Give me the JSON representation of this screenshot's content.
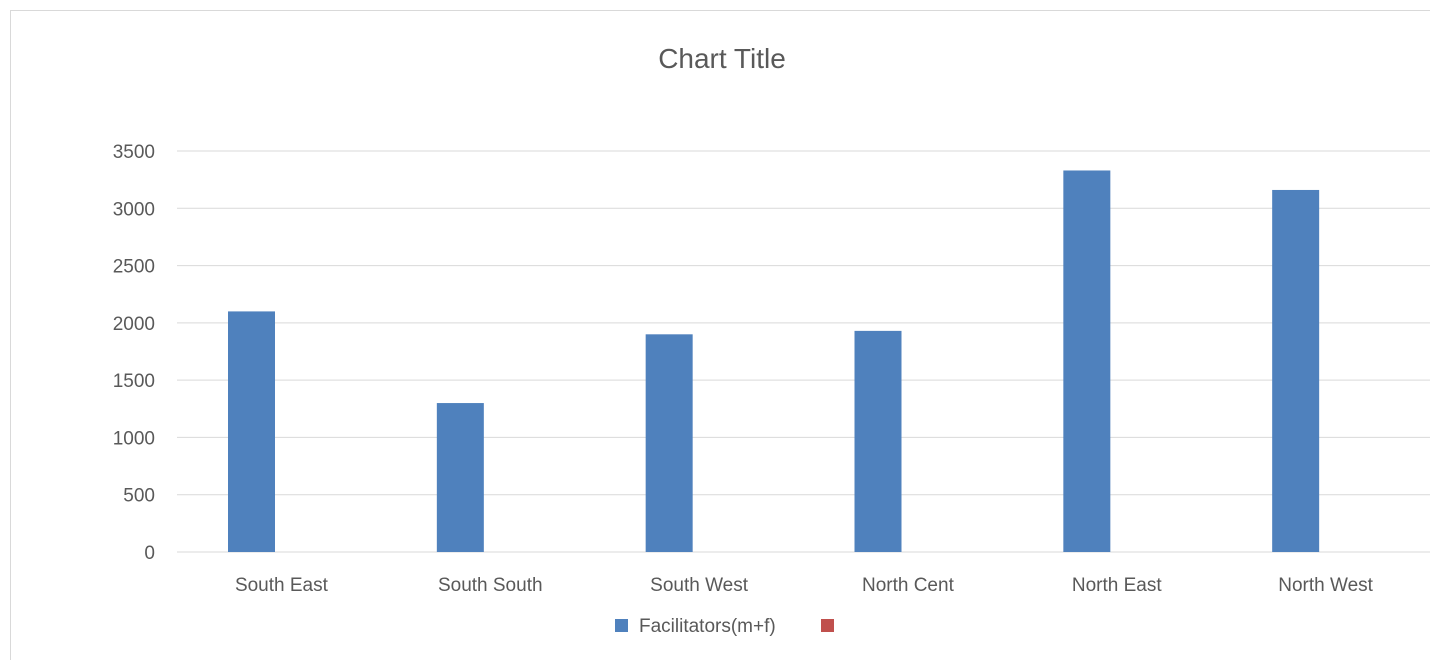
{
  "chart_data": {
    "type": "bar",
    "title": "Chart Title",
    "categories": [
      "South East",
      "South South",
      "South West",
      "North Cent",
      "North East",
      "North West"
    ],
    "series": [
      {
        "name": "Facilitators(m+f)",
        "values": [
          2100,
          1300,
          1900,
          1930,
          3330,
          3160
        ],
        "color": "#4f81bd"
      },
      {
        "name": "",
        "values": [
          0,
          0,
          0,
          0,
          0,
          0
        ],
        "color": "#c0504d"
      }
    ],
    "ylim": [
      0,
      3500
    ],
    "yticks": [
      "0",
      "500",
      "1000",
      "1500",
      "2000",
      "2500",
      "3000",
      "3500"
    ],
    "grid": true,
    "legend": "bottom"
  }
}
